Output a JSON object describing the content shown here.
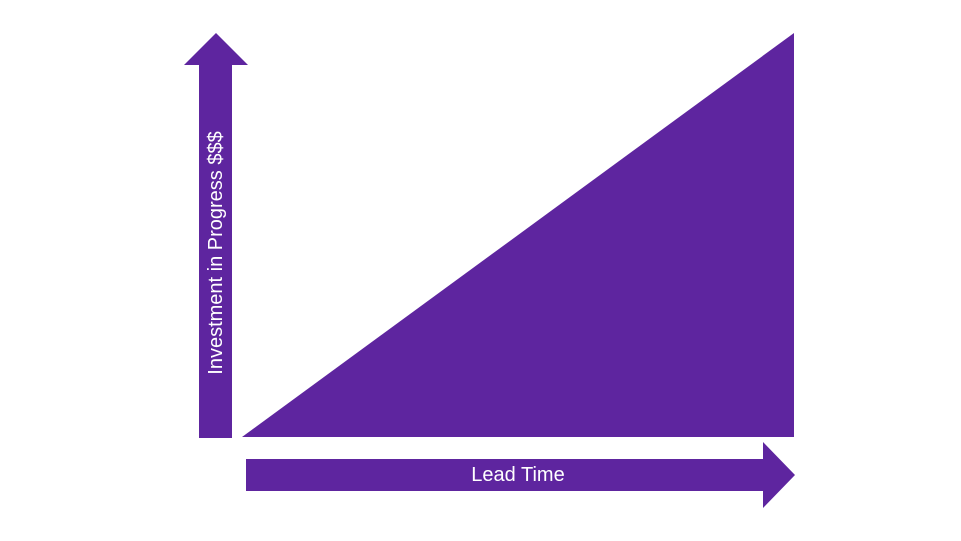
{
  "diagram": {
    "y_axis_label": "Investment in Progress $$$",
    "x_axis_label": "Lead Time",
    "colors": {
      "fill": "#5e259f",
      "background": "#ffffff",
      "label": "#ffffff"
    }
  }
}
